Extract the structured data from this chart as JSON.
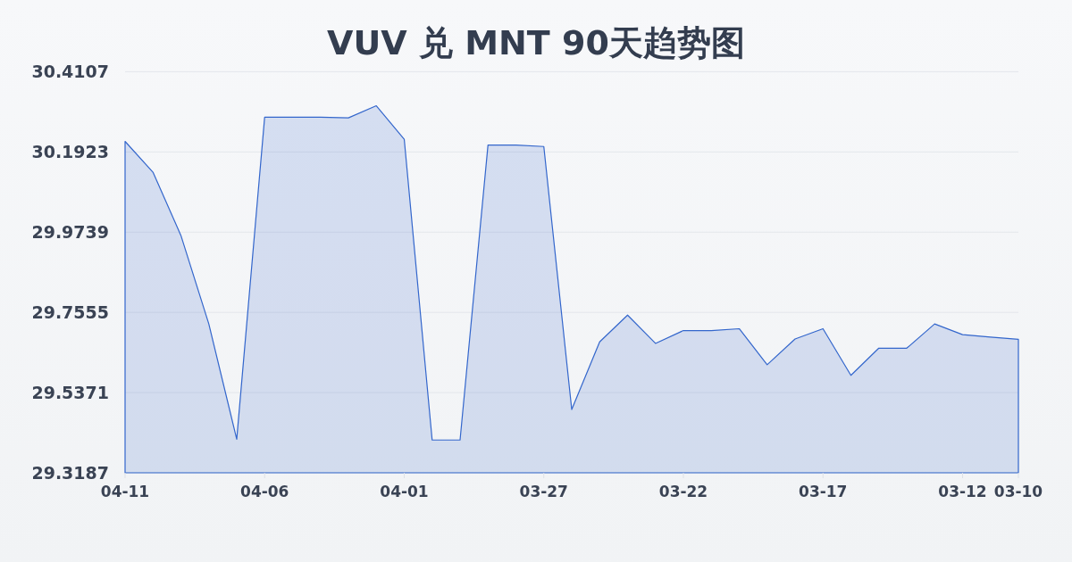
{
  "chart_data": {
    "type": "area",
    "title": "VUV 兑 MNT 90天趋势图",
    "categories": [
      "04-11",
      null,
      null,
      null,
      null,
      "04-06",
      null,
      null,
      null,
      null,
      "04-01",
      null,
      null,
      null,
      null,
      "03-27",
      null,
      null,
      null,
      null,
      "03-22",
      null,
      null,
      null,
      null,
      "03-17",
      null,
      null,
      null,
      null,
      "03-12",
      null,
      "03-10"
    ],
    "values": [
      30.221,
      30.137,
      29.965,
      29.724,
      29.41,
      30.287,
      30.287,
      30.287,
      30.285,
      30.318,
      30.227,
      29.408,
      29.408,
      30.211,
      30.211,
      30.207,
      29.491,
      29.675,
      29.748,
      29.671,
      29.706,
      29.706,
      29.711,
      29.613,
      29.683,
      29.711,
      29.584,
      29.658,
      29.658,
      29.724,
      29.695,
      29.688,
      29.682
    ],
    "color": "#3366cc",
    "ylim": [
      29.3187,
      30.4107
    ],
    "yticks": [
      29.3187,
      29.5371,
      29.7555,
      29.9739,
      30.1923,
      30.4107
    ],
    "grid": "y"
  }
}
